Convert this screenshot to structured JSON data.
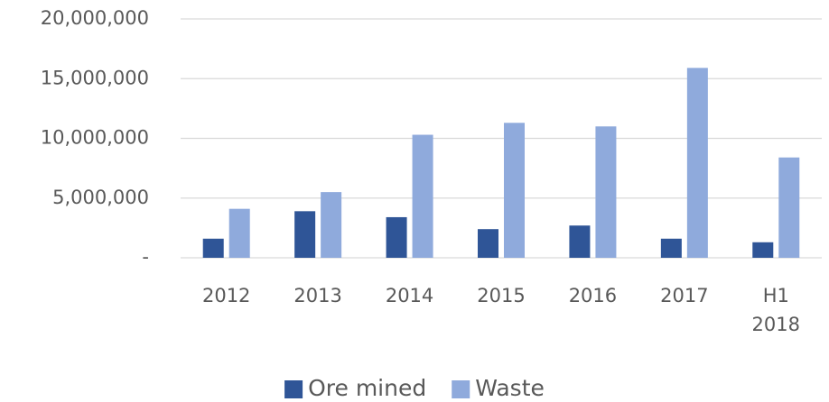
{
  "chart_data": {
    "type": "bar",
    "categories": [
      "2012",
      "2013",
      "2014",
      "2015",
      "2016",
      "2017",
      "H1 2018"
    ],
    "series": [
      {
        "name": "Ore mined",
        "color": "#2f5597",
        "values": [
          1600000,
          3900000,
          3400000,
          2400000,
          2700000,
          1600000,
          1300000
        ]
      },
      {
        "name": "Waste",
        "color": "#8faadc",
        "values": [
          4100000,
          5500000,
          10300000,
          11300000,
          11000000,
          15900000,
          8400000
        ]
      }
    ],
    "ylim": [
      0,
      20000000
    ],
    "yticks": [
      {
        "value": 0,
        "label": "-"
      },
      {
        "value": 5000000,
        "label": "5,000,000"
      },
      {
        "value": 10000000,
        "label": "10,000,000"
      },
      {
        "value": 15000000,
        "label": "15,000,000"
      },
      {
        "value": 20000000,
        "label": "20,000,000"
      }
    ],
    "grid": true,
    "legend": "bottom"
  }
}
